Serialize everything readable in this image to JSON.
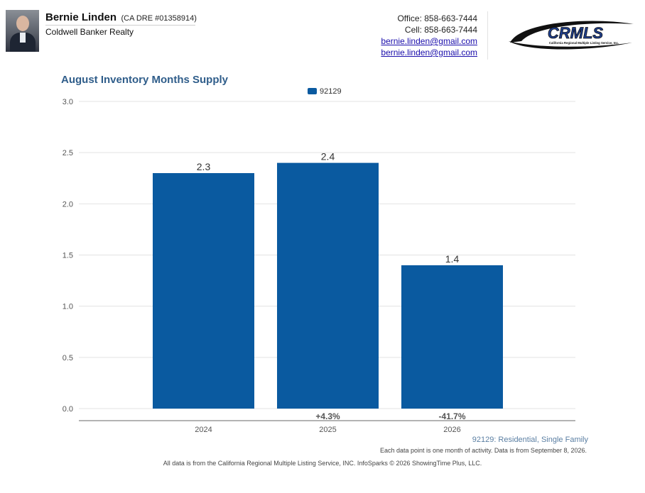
{
  "header": {
    "agent_name": "Bernie Linden",
    "license": "(CA DRE #01358914)",
    "company": "Coldwell Banker Realty",
    "office": "Office: 858-663-7444",
    "cell": "Cell: 858-663-7444",
    "email_1": "bernie.linden@gmail.com",
    "email_2": "bernie.linden@gmail.com",
    "logo_text": "CRMLS",
    "logo_subtext": "California Regional Multiple Listing Service, Inc."
  },
  "chart_data": {
    "type": "bar",
    "title": "August Inventory Months Supply",
    "categories": [
      "2024",
      "2025",
      "2026"
    ],
    "series": [
      {
        "name": "92129",
        "values": [
          2.3,
          2.4,
          1.4
        ],
        "color": "#0a5aa0"
      }
    ],
    "data_labels": [
      "2.3",
      "2.4",
      "1.4"
    ],
    "change_labels": [
      "",
      "+4.3%",
      "-41.7%"
    ],
    "y_ticks": [
      "0.0",
      "0.5",
      "1.0",
      "1.5",
      "2.0",
      "2.5",
      "3.0"
    ],
    "ylim": [
      0,
      3.0
    ],
    "xlabel": "",
    "ylabel": "",
    "grid": true,
    "legend_position": "top-center"
  },
  "footer": {
    "series_note": "92129: Residential, Single Family",
    "activity_note": "Each data point is one month of activity. Data is from September 8, 2026.",
    "source_note": "All data is from the California Regional Multiple Listing Service, INC. InfoSparks © 2026 ShowingTime Plus, LLC."
  }
}
